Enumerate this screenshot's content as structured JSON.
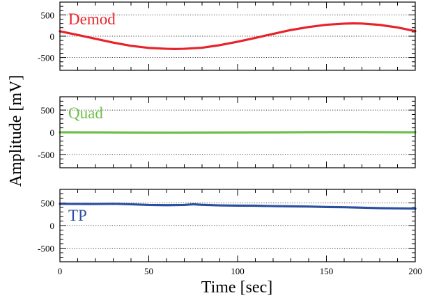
{
  "chart_data": {
    "type": "line",
    "xlabel": "Time [sec]",
    "ylabel": "Amplitude [mV]",
    "xlim": [
      0,
      200
    ],
    "x_ticks": [
      0,
      50,
      100,
      150,
      200
    ],
    "grid": "horizontal dotted at major y ticks",
    "panels": [
      {
        "name": "Demod",
        "color": "#e8222a",
        "ylim": [
          -800,
          800
        ],
        "y_ticks": [
          -500,
          0,
          500
        ],
        "series": [
          {
            "name": "Demod",
            "x": [
              0,
              10,
              20,
              30,
              40,
              50,
              60,
              65,
              70,
              80,
              90,
              100,
              110,
              120,
              130,
              140,
              150,
              160,
              165,
              170,
              180,
              190,
              200
            ],
            "y": [
              115,
              30,
              -60,
              -150,
              -225,
              -275,
              -295,
              -300,
              -295,
              -270,
              -210,
              -130,
              -40,
              55,
              145,
              215,
              268,
              295,
              300,
              297,
              265,
              205,
              120
            ]
          }
        ]
      },
      {
        "name": "Quad",
        "color": "#6cc04a",
        "ylim": [
          -800,
          800
        ],
        "y_ticks": [
          -500,
          0,
          500
        ],
        "series": [
          {
            "name": "Quad",
            "x": [
              0,
              20,
              40,
              60,
              80,
              100,
              120,
              140,
              160,
              180,
              200
            ],
            "y": [
              0,
              -2,
              -6,
              -8,
              -6,
              -4,
              -2,
              2,
              4,
              2,
              0
            ]
          }
        ]
      },
      {
        "name": "TP",
        "color": "#2b4fa0",
        "ylim": [
          -800,
          800
        ],
        "y_ticks": [
          -500,
          0,
          500
        ],
        "series": [
          {
            "name": "TP",
            "x": [
              0,
              10,
              20,
              30,
              40,
              50,
              60,
              70,
              75,
              80,
              90,
              100,
              110,
              120,
              130,
              140,
              150,
              160,
              170,
              180,
              190,
              200
            ],
            "y": [
              480,
              478,
              476,
              482,
              470,
              455,
              450,
              455,
              470,
              458,
              445,
              440,
              438,
              430,
              425,
              420,
              410,
              405,
              395,
              385,
              380,
              375
            ]
          }
        ]
      }
    ]
  }
}
